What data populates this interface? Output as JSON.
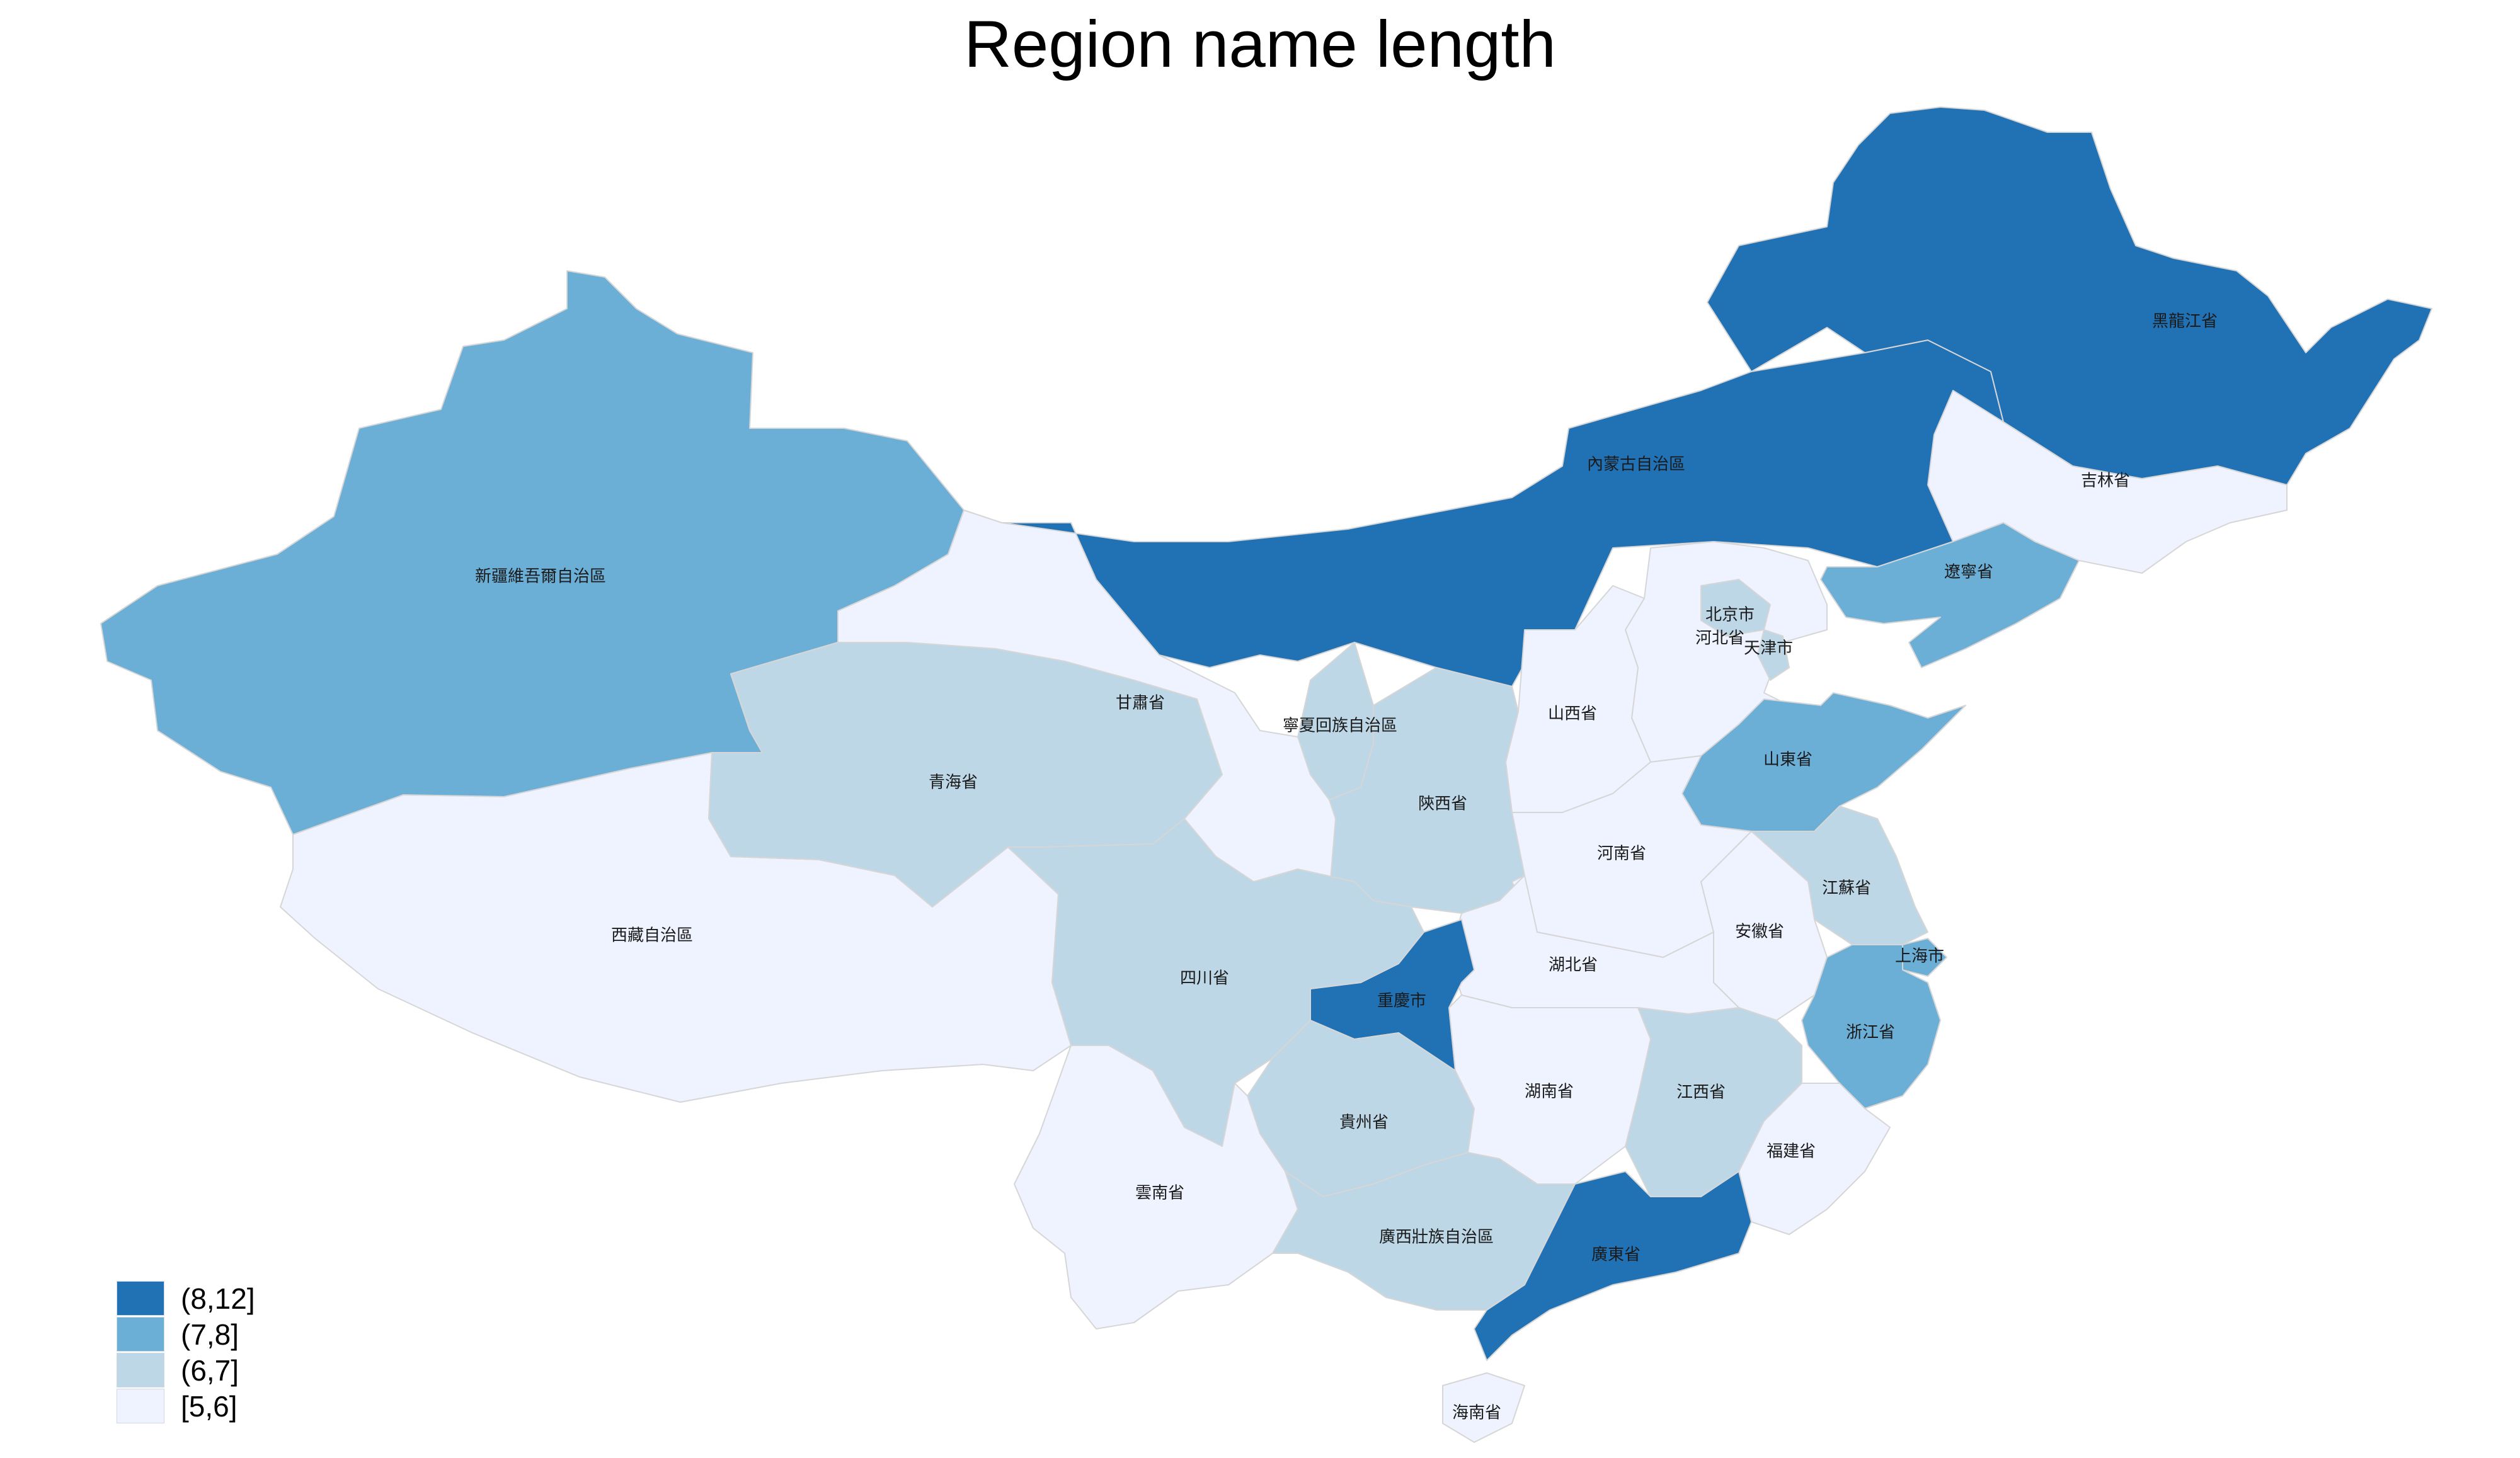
{
  "title": "Region name length",
  "colors": {
    "c8_12": "#2171b5",
    "c7_8": "#6baed6",
    "c6_7": "#bdd7e7",
    "c5_6": "#eff3ff",
    "border": "#d6d6d6"
  },
  "legend": [
    {
      "label": "(8,12]",
      "color": "#2171b5"
    },
    {
      "label": "(7,8]",
      "color": "#6baed6"
    },
    {
      "label": "(6,7]",
      "color": "#bdd7e7"
    },
    {
      "label": "[5,6]",
      "color": "#eff3ff"
    }
  ],
  "regions": {
    "xinjiang": {
      "name": "新疆維吾爾自治區",
      "class": "(7,8]"
    },
    "tibet": {
      "name": "西藏自治區",
      "class": "[5,6]"
    },
    "qinghai": {
      "name": "青海省",
      "class": "(6,7]"
    },
    "gansu": {
      "name": "甘肅省",
      "class": "[5,6]"
    },
    "innermongolia": {
      "name": "內蒙古自治區",
      "class": "(8,12]"
    },
    "heilongjiang": {
      "name": "黑龍江省",
      "class": "(8,12]"
    },
    "jilin": {
      "name": "吉林省",
      "class": "[5,6]"
    },
    "liaoning": {
      "name": "遼寧省",
      "class": "(7,8]"
    },
    "beijing": {
      "name": "北京市",
      "class": "(6,7]"
    },
    "tianjin": {
      "name": "天津市",
      "class": "(6,7]"
    },
    "hebei": {
      "name": "河北省",
      "class": "[5,6]"
    },
    "shanxi": {
      "name": "山西省",
      "class": "[5,6]"
    },
    "ningxia": {
      "name": "寧夏回族自治區",
      "class": "(6,7]"
    },
    "shaanxi": {
      "name": "陝西省",
      "class": "(6,7]"
    },
    "shandong": {
      "name": "山東省",
      "class": "(7,8]"
    },
    "henan": {
      "name": "河南省",
      "class": "[5,6]"
    },
    "jiangsu": {
      "name": "江蘇省",
      "class": "(6,7]"
    },
    "anhui": {
      "name": "安徽省",
      "class": "[5,6]"
    },
    "shanghai": {
      "name": "上海市",
      "class": "(7,8]"
    },
    "zhejiang": {
      "name": "浙江省",
      "class": "(7,8]"
    },
    "hubei": {
      "name": "湖北省",
      "class": "[5,6]"
    },
    "sichuan": {
      "name": "四川省",
      "class": "(6,7]"
    },
    "chongqing": {
      "name": "重慶市",
      "class": "(8,12]"
    },
    "hunan": {
      "name": "湖南省",
      "class": "[5,6]"
    },
    "jiangxi": {
      "name": "江西省",
      "class": "(6,7]"
    },
    "fujian": {
      "name": "福建省",
      "class": "[5,6]"
    },
    "guizhou": {
      "name": "貴州省",
      "class": "(6,7]"
    },
    "yunnan": {
      "name": "雲南省",
      "class": "[5,6]"
    },
    "guangxi": {
      "name": "廣西壯族自治區",
      "class": "(6,7]"
    },
    "guangdong": {
      "name": "廣東省",
      "class": "(8,12]"
    },
    "hainan": {
      "name": "海南省",
      "class": "[5,6]"
    }
  }
}
